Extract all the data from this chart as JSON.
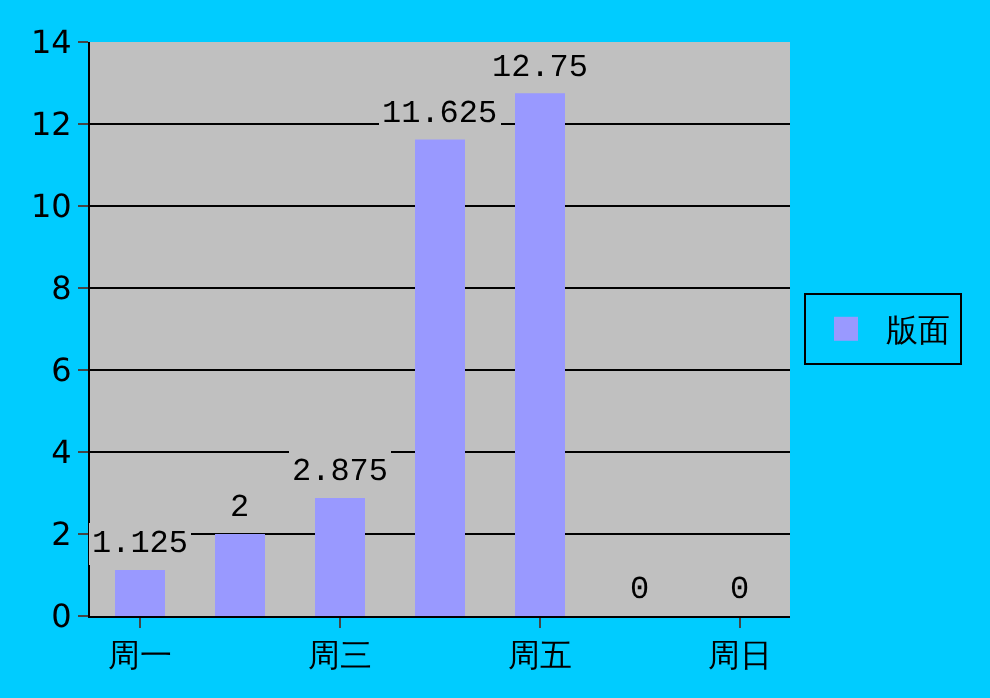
{
  "chart_data": {
    "type": "bar",
    "categories": [
      "周一",
      null,
      "周三",
      null,
      "周五",
      null,
      "周日"
    ],
    "series": [
      {
        "name": "版面",
        "color": "#9999ff",
        "values": [
          1.125,
          2,
          2.875,
          11.625,
          12.75,
          0,
          0
        ]
      }
    ],
    "ylim": [
      0,
      14
    ],
    "yticks": [
      0,
      2,
      4,
      6,
      8,
      10,
      12,
      14
    ],
    "grid": "y",
    "legend": "right",
    "data_labels": true
  }
}
